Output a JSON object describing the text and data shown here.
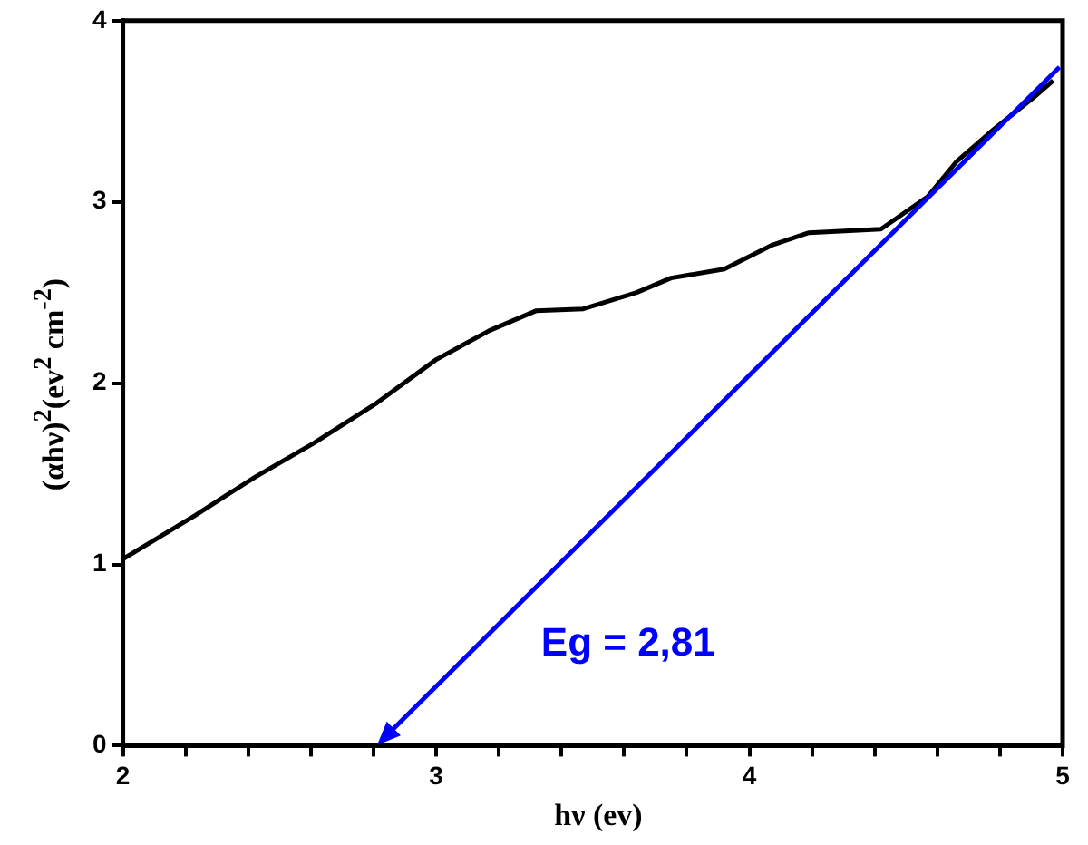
{
  "chart_data": {
    "type": "line",
    "xlabel": "hν  (ev)",
    "ylabel": "(αhν)$^{2}$(ev$^{2}$ cm$^{-2}$)",
    "xlim": [
      2,
      5
    ],
    "xticks": [
      2,
      {
        "value": 2.2,
        "label": null
      },
      {
        "value": 2.4,
        "label": null
      },
      {
        "value": 2.6,
        "label": null
      },
      {
        "value": 2.8,
        "label": null
      },
      3,
      {
        "value": 3.2,
        "label": null
      },
      {
        "value": 3.4,
        "label": null
      },
      {
        "value": 3.6,
        "label": null
      },
      {
        "value": 3.8,
        "label": null
      },
      4,
      {
        "value": 4.2,
        "label": null
      },
      {
        "value": 4.4,
        "label": null
      },
      {
        "value": 4.6,
        "label": null
      },
      {
        "value": 4.8,
        "label": null
      },
      5
    ],
    "ylim": [
      0,
      4
    ],
    "yticks": [
      0,
      1,
      2,
      3,
      4
    ],
    "grid": false,
    "legend": false,
    "marker": "none",
    "series": [
      {
        "color": "#000000",
        "x": [
          2.0,
          2.23,
          2.42,
          2.61,
          2.81,
          3.0,
          3.17,
          3.32,
          3.47,
          3.64,
          3.75,
          3.92,
          4.07,
          4.19,
          4.42,
          4.57,
          4.66,
          4.78,
          4.91,
          4.97
        ],
        "values": [
          1.03,
          1.27,
          1.48,
          1.67,
          1.89,
          2.13,
          2.29,
          2.4,
          2.41,
          2.5,
          2.58,
          2.63,
          2.76,
          2.83,
          2.85,
          3.03,
          3.22,
          3.4,
          3.58,
          3.67
        ]
      }
    ],
    "annotations": [
      "Eg = 2,81"
    ]
  }
}
